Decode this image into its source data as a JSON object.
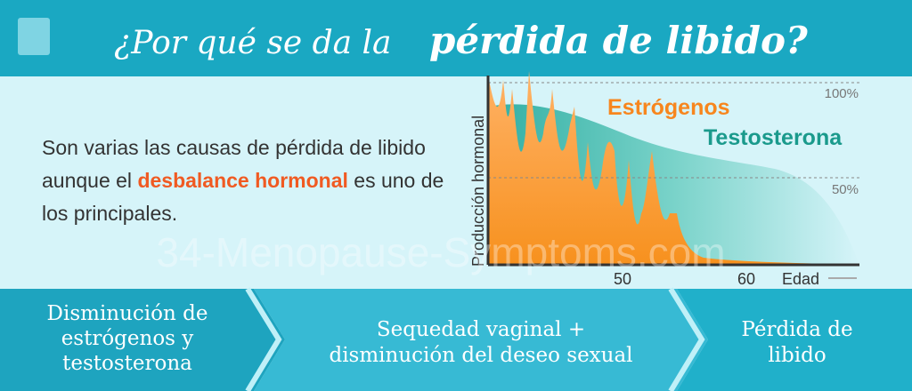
{
  "header": {
    "title_start": "¿Por qué se da la",
    "title_emphasis": "pérdida de libido?"
  },
  "intro": {
    "text_before": "Son varias las causas de pérdida de libido aunque el",
    "highlight": "desbalance hormonal",
    "text_after": "es uno de los principales."
  },
  "graph": {
    "y_label": "Producción hormonal",
    "x_label": "Edad",
    "series_labels": [
      "Estrógenos",
      "Testosterona"
    ],
    "y_ticks": [
      "100%",
      "50%"
    ],
    "x_ticks": [
      "50",
      "60"
    ]
  },
  "watermark": "34-Menopause-Symptoms.com",
  "steps": [
    {
      "lines": [
        "Disminución de",
        "estrógenos y",
        "testosterona"
      ]
    },
    {
      "lines": [
        "Sequedad vaginal +",
        "disminución del deseo sexual"
      ]
    },
    {
      "lines": [
        "Pérdida de",
        "libido"
      ]
    }
  ]
}
